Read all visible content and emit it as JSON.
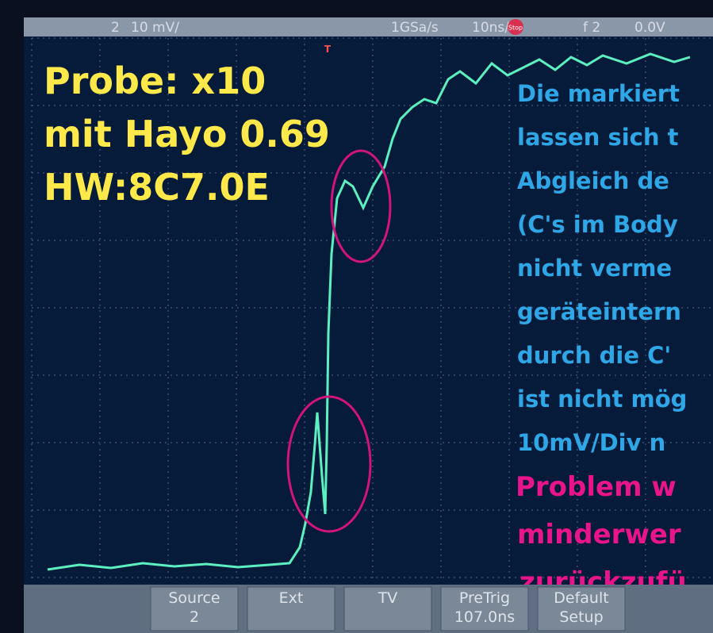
{
  "status_bar": {
    "channel": "2",
    "scale": "10 mV/",
    "sample_rate": "1GSa/s",
    "timebase": "10ns/",
    "run_state": "Stop",
    "trigger": "f 2",
    "level": "0.0V"
  },
  "trigger_marker": "T",
  "overlay": {
    "probe_lines": [
      "Probe: x10",
      "mit Hayo 0.69",
      "HW:8C7.0E"
    ],
    "note_lines": [
      "Die markiert",
      "lassen sich t",
      "Abgleich de",
      "(C's im Body",
      "nicht verme",
      "geräteintern",
      "durch die C'",
      "ist nicht mög",
      "10mV/Div n"
    ],
    "conclusion_lines": [
      "Problem w",
      "minderwer",
      "zurückzufü"
    ]
  },
  "softkeys": [
    {
      "label": "Source",
      "value": "2"
    },
    {
      "label": "Ext"
    },
    {
      "label": "TV"
    },
    {
      "label": "PreTrig",
      "value": "107.0ns"
    },
    {
      "label": "Default",
      "value": "Setup"
    }
  ]
}
